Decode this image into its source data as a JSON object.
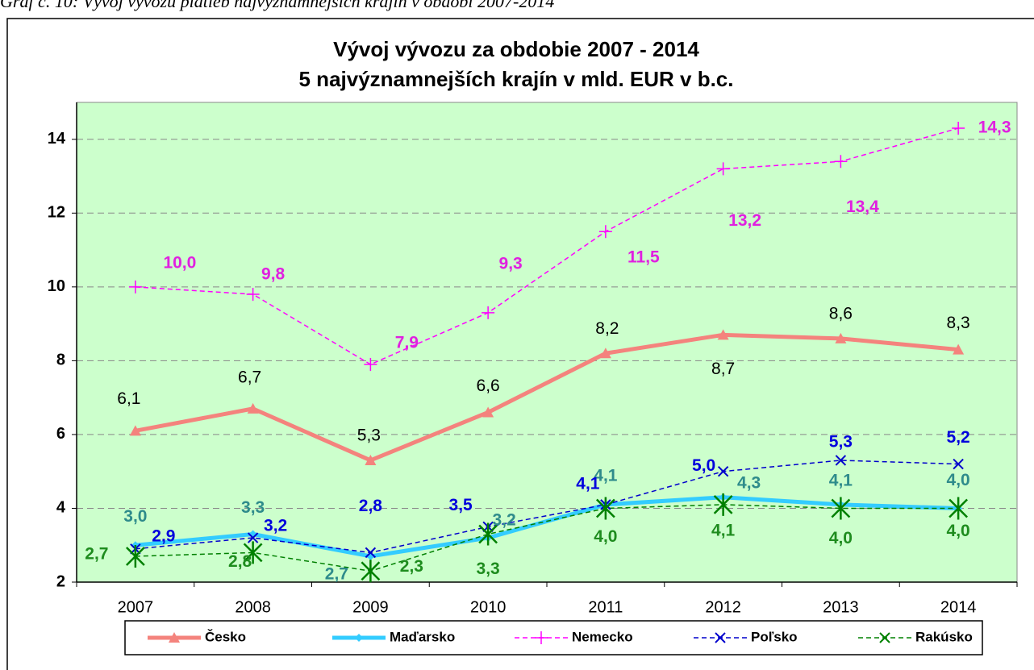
{
  "chart_data": {
    "type": "line",
    "caption": "Graf č. 10: Vývoj vývozu platieb najvýznamnejších krajín v období 2007-2014",
    "title": [
      "Vývoj vývozu za obdobie 2007 - 2014",
      "5 najvýznamnejších krajín v mld. EUR v b.c."
    ],
    "categories": [
      "2007",
      "2008",
      "2009",
      "2010",
      "2011",
      "2012",
      "2013",
      "2014"
    ],
    "ylim": [
      2,
      15
    ],
    "yticks": [
      2,
      4,
      6,
      8,
      10,
      12,
      14
    ],
    "grid": true,
    "legend": "bottom",
    "series": [
      {
        "name": "Česko",
        "color": "#f4837d",
        "label_color": "#000000",
        "marker": "triangle",
        "dashed": false,
        "width": 5,
        "values": [
          6.1,
          6.7,
          5.3,
          6.6,
          8.2,
          8.7,
          8.6,
          8.3
        ],
        "value_labels": [
          "6,1",
          "6,7",
          "5,3",
          "6,6",
          "8,2",
          "8,7",
          "8,6",
          "8,3"
        ]
      },
      {
        "name": "Maďarsko",
        "color": "#33ccff",
        "label_color": "#2e8b8b",
        "marker": "diamond",
        "dashed": false,
        "width": 5,
        "values": [
          3.0,
          3.3,
          2.7,
          3.2,
          4.1,
          4.3,
          4.1,
          4.0
        ],
        "value_labels": [
          "3,0",
          "3,3",
          "2,7",
          "3,2",
          "4,1",
          "4,3",
          "4,1",
          "4,0"
        ]
      },
      {
        "name": "Nemecko",
        "color": "#ff00ff",
        "label_color": "#e020e0",
        "marker": "plus",
        "dashed": true,
        "width": 1.5,
        "values": [
          10.0,
          9.8,
          7.9,
          9.3,
          11.5,
          13.2,
          13.4,
          14.3
        ],
        "value_labels": [
          "10,0",
          "9,8",
          "7,9",
          "9,3",
          "11,5",
          "13,2",
          "13,4",
          "14,3"
        ]
      },
      {
        "name": "Poľsko",
        "color": "#0000cc",
        "label_color": "#0000dd",
        "marker": "cross",
        "dashed": true,
        "width": 1.5,
        "values": [
          2.9,
          3.2,
          2.8,
          3.5,
          4.1,
          5.0,
          5.3,
          5.2
        ],
        "value_labels": [
          "2,9",
          "3,2",
          "2,8",
          "3,5",
          "4,1",
          "5,0",
          "5,3",
          "5,2"
        ]
      },
      {
        "name": "Rakúsko",
        "color": "#008000",
        "label_color": "#1e8c1e",
        "marker": "star",
        "dashed": true,
        "width": 1.5,
        "values": [
          2.7,
          2.8,
          2.3,
          3.3,
          4.0,
          4.1,
          4.0,
          4.0
        ],
        "value_labels": [
          "2,7",
          "2,8",
          "2,3",
          "3,3",
          "4,0",
          "4,1",
          "4,0",
          "4,0"
        ]
      }
    ]
  }
}
